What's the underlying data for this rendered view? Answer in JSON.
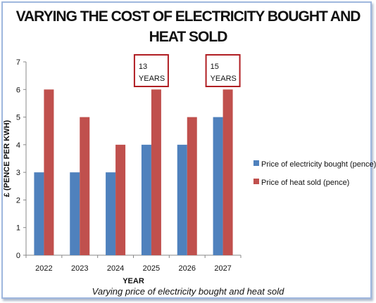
{
  "title_line1": "VARYING THE COST OF ELECTRICITY BOUGHT AND",
  "title_line2": "HEAT SOLD",
  "caption": "Varying price of electricity bought and heat sold",
  "chart_data": {
    "type": "bar",
    "title": "VARYING THE COST OF ELECTRICITY BOUGHT AND HEAT SOLD",
    "xlabel": "YEAR",
    "ylabel": "£ (PENCE PER KWH)",
    "categories": [
      "2022",
      "2023",
      "2024",
      "2025",
      "2026",
      "2027"
    ],
    "series": [
      {
        "name": "Price of electricity bought (pence)",
        "values": [
          3,
          3,
          3,
          4,
          4,
          5
        ],
        "color": "#4f81bd"
      },
      {
        "name": "Price of heat sold (pence)",
        "values": [
          6,
          5,
          4,
          6,
          5,
          6
        ],
        "color": "#c0504d"
      }
    ],
    "ylim": [
      0,
      7
    ],
    "yticks": [
      0,
      1,
      2,
      3,
      4,
      5,
      6,
      7
    ],
    "grid": false,
    "legend_position": "right",
    "annotations": [
      {
        "category": "2025",
        "line1": "13",
        "line2": "YEARS",
        "border_color": "#b01e23"
      },
      {
        "category": "2027",
        "line1": "15",
        "line2": "YEARS",
        "border_color": "#b01e23"
      }
    ]
  }
}
